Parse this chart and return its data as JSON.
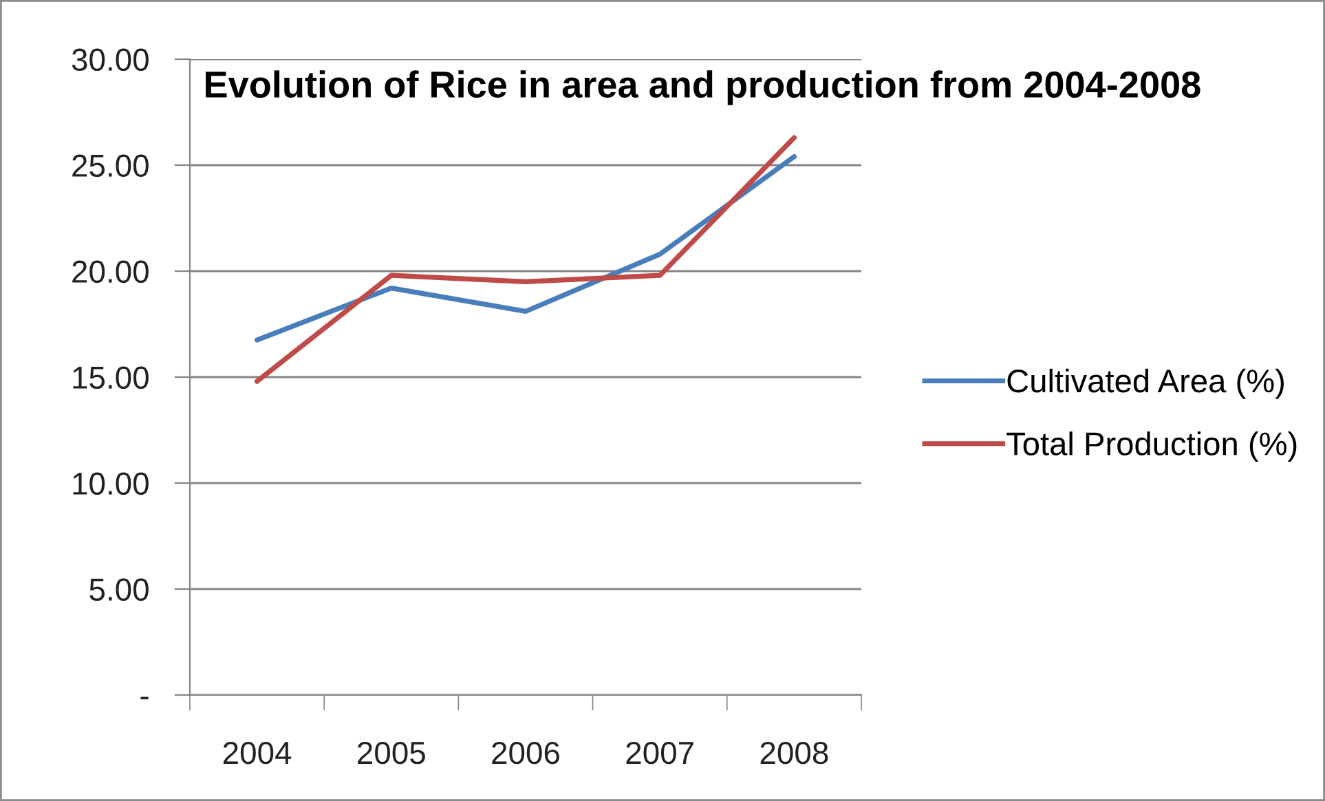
{
  "chart_data": {
    "type": "line",
    "title": "Evolution of Rice in area and production from 2004-2008",
    "categories": [
      "2004",
      "2005",
      "2006",
      "2007",
      "2008"
    ],
    "series": [
      {
        "name": "Cultivated Area (%)",
        "color": "#4a7ebb",
        "values": [
          16.75,
          19.2,
          18.1,
          20.8,
          25.4
        ]
      },
      {
        "name": "Total Production (%)",
        "color": "#be4b48",
        "values": [
          14.8,
          19.8,
          19.5,
          19.8,
          26.3
        ]
      }
    ],
    "ylim": [
      0,
      30
    ],
    "yticks": [
      {
        "value": 0,
        "label": "-"
      },
      {
        "value": 5,
        "label": "5.00"
      },
      {
        "value": 10,
        "label": "10.00"
      },
      {
        "value": 15,
        "label": "15.00"
      },
      {
        "value": 20,
        "label": "20.00"
      },
      {
        "value": 25,
        "label": "25.00"
      },
      {
        "value": 30,
        "label": "30.00"
      }
    ],
    "grid": "y",
    "legend": "right",
    "marker": "none",
    "line_style": "solid"
  }
}
